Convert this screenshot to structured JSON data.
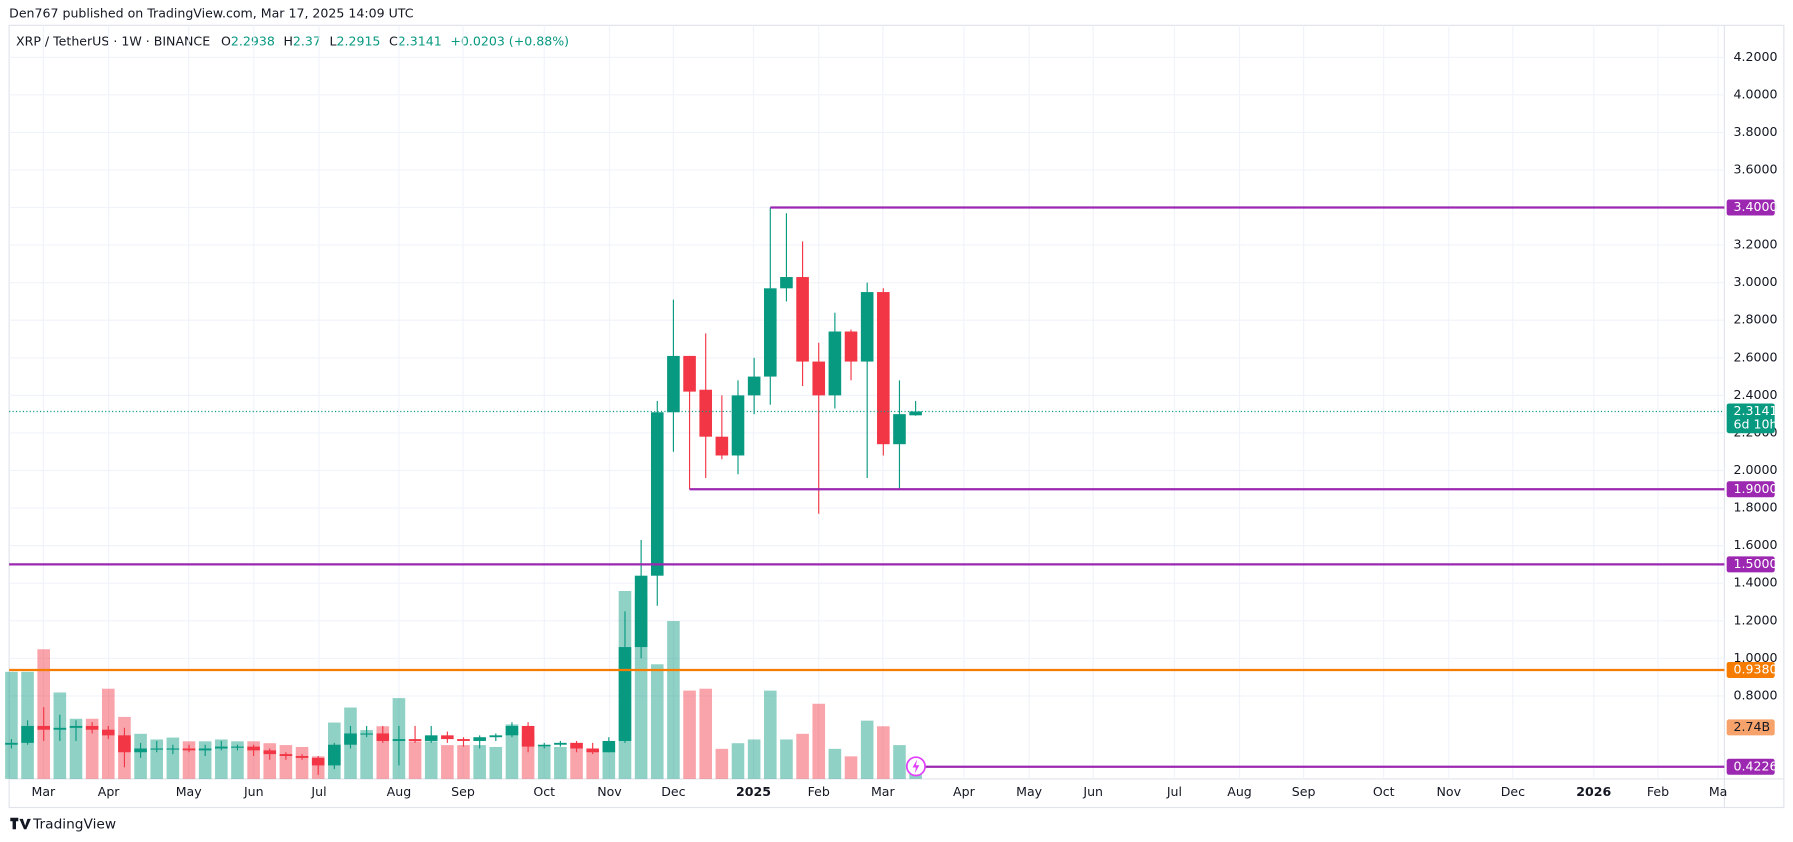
{
  "chart_data": {
    "type": "candlestick",
    "header": "Den767 published on TradingView.com, Mar 17, 2025 14:09 UTC",
    "title": "XRP / TetherUS · 1W · BINANCE",
    "fields": [
      "O",
      "H",
      "L",
      "C"
    ],
    "change": "+0.0203 (+0.88%)",
    "footer": "TradingView",
    "up_color": "#089981",
    "down_color": "#f23645",
    "open": [
      0.54,
      0.55,
      0.64,
      0.62,
      0.63,
      0.64,
      0.62,
      0.59,
      0.5,
      0.52,
      0.52,
      0.52,
      0.51,
      0.52,
      0.53,
      0.53,
      0.51,
      0.49,
      0.48,
      0.47,
      0.43,
      0.54,
      0.6,
      0.6,
      0.56,
      0.57,
      0.56,
      0.59,
      0.57,
      0.56,
      0.58,
      0.59,
      0.64,
      0.53,
      0.54,
      0.55,
      0.52,
      0.5,
      0.56,
      1.06,
      1.44,
      2.31,
      2.61,
      2.43,
      2.18,
      2.08,
      2.4,
      2.5,
      2.97,
      3.03,
      2.58,
      2.4,
      2.74,
      2.58,
      2.95,
      2.14,
      2.2938
    ],
    "high": [
      0.57,
      0.67,
      0.74,
      0.7,
      0.67,
      0.66,
      0.64,
      0.63,
      0.55,
      0.56,
      0.54,
      0.54,
      0.54,
      0.56,
      0.54,
      0.54,
      0.52,
      0.5,
      0.49,
      0.48,
      0.55,
      0.64,
      0.64,
      0.64,
      0.64,
      0.64,
      0.64,
      0.61,
      0.58,
      0.59,
      0.6,
      0.66,
      0.66,
      0.55,
      0.56,
      0.56,
      0.55,
      0.58,
      1.25,
      1.63,
      2.37,
      2.91,
      2.61,
      2.73,
      2.4,
      2.48,
      2.6,
      3.4,
      3.37,
      3.22,
      2.68,
      2.84,
      2.75,
      3.0,
      2.97,
      2.48,
      2.37
    ],
    "low": [
      0.52,
      0.54,
      0.56,
      0.56,
      0.56,
      0.6,
      0.57,
      0.42,
      0.47,
      0.5,
      0.49,
      0.5,
      0.48,
      0.51,
      0.51,
      0.48,
      0.46,
      0.46,
      0.46,
      0.38,
      0.41,
      0.52,
      0.58,
      0.55,
      0.43,
      0.55,
      0.55,
      0.55,
      0.53,
      0.52,
      0.56,
      0.58,
      0.5,
      0.52,
      0.53,
      0.5,
      0.49,
      0.5,
      0.55,
      1.0,
      1.28,
      2.1,
      1.9,
      1.96,
      2.06,
      1.98,
      2.3,
      2.35,
      2.9,
      2.45,
      1.77,
      2.33,
      2.48,
      1.96,
      2.08,
      1.9,
      2.2915
    ],
    "close": [
      0.55,
      0.64,
      0.62,
      0.63,
      0.64,
      0.62,
      0.59,
      0.5,
      0.52,
      0.52,
      0.52,
      0.51,
      0.52,
      0.53,
      0.53,
      0.51,
      0.49,
      0.48,
      0.47,
      0.43,
      0.54,
      0.6,
      0.6,
      0.56,
      0.57,
      0.56,
      0.59,
      0.57,
      0.56,
      0.58,
      0.59,
      0.64,
      0.53,
      0.54,
      0.55,
      0.52,
      0.5,
      0.56,
      1.06,
      1.44,
      2.31,
      2.61,
      2.42,
      2.18,
      2.08,
      2.4,
      2.5,
      2.97,
      3.03,
      2.58,
      2.4,
      2.74,
      2.58,
      2.95,
      2.14,
      2.3,
      2.3141
    ],
    "volume": [
      5.7,
      5.7,
      6.9,
      4.6,
      3.2,
      3.2,
      4.8,
      3.3,
      2.4,
      2.1,
      2.2,
      2.0,
      2.0,
      2.1,
      2.0,
      2.0,
      1.9,
      1.8,
      1.7,
      1.2,
      3.0,
      3.8,
      2.6,
      2.8,
      4.3,
      2.0,
      2.0,
      1.8,
      1.8,
      1.8,
      1.7,
      2.9,
      2.4,
      1.7,
      1.7,
      1.7,
      1.5,
      1.8,
      10.0,
      9.8,
      6.1,
      8.4,
      4.7,
      4.8,
      1.6,
      1.9,
      2.1,
      4.7,
      2.1,
      2.4,
      4.0,
      1.6,
      1.2,
      3.1,
      2.8,
      1.8,
      1.0
    ],
    "volume_lim": [
      0,
      40.1
    ],
    "volume_ma": {
      "value": 2.74,
      "label": "2.74B"
    },
    "xlim": [
      -0.14,
      106.09
    ],
    "xticks": [
      {
        "value": 1.98,
        "label": "Mar"
      },
      {
        "value": 6.02,
        "label": "Apr"
      },
      {
        "value": 10.98,
        "label": "May"
      },
      {
        "value": 15.01,
        "label": "Jun"
      },
      {
        "value": 19.05,
        "label": "Jul"
      },
      {
        "value": 24.0,
        "label": "Aug"
      },
      {
        "value": 27.97,
        "label": "Sep"
      },
      {
        "value": 33.0,
        "label": "Oct"
      },
      {
        "value": 37.04,
        "label": "Nov"
      },
      {
        "value": 41.0,
        "label": "Dec"
      },
      {
        "value": 45.96,
        "label": "2025"
      },
      {
        "value": 50.0,
        "label": "Feb"
      },
      {
        "value": 53.97,
        "label": "Mar"
      },
      {
        "value": 58.99,
        "label": "Apr"
      },
      {
        "value": 63.03,
        "label": "May"
      },
      {
        "value": 67.0,
        "label": "Jun"
      },
      {
        "value": 72.03,
        "label": "Jul"
      },
      {
        "value": 76.06,
        "label": "Aug"
      },
      {
        "value": 80.03,
        "label": "Sep"
      },
      {
        "value": 84.99,
        "label": "Oct"
      },
      {
        "value": 89.02,
        "label": "Nov"
      },
      {
        "value": 92.99,
        "label": "Dec"
      },
      {
        "value": 98.0,
        "label": "2026"
      },
      {
        "value": 101.98,
        "label": "Feb"
      },
      {
        "value": 105.7,
        "label": "Ma"
      }
    ],
    "ylim": [
      0.358,
      4.37
    ],
    "yticks": [
      {
        "value": 4.2,
        "label": "4.2000"
      },
      {
        "value": 4.0,
        "label": "4.0000"
      },
      {
        "value": 3.8,
        "label": "3.8000"
      },
      {
        "value": 3.6,
        "label": "3.6000"
      },
      {
        "value": 3.4,
        "label": "3.4000"
      },
      {
        "value": 3.2,
        "label": "3.2000"
      },
      {
        "value": 3.0,
        "label": "3.0000"
      },
      {
        "value": 2.8,
        "label": "2.8000"
      },
      {
        "value": 2.6,
        "label": "2.6000"
      },
      {
        "value": 2.4,
        "label": "2.4000"
      },
      {
        "value": 2.2,
        "label": "2.2000"
      },
      {
        "value": 2.0,
        "label": "2.0000"
      },
      {
        "value": 1.8,
        "label": "1.8000"
      },
      {
        "value": 1.6,
        "label": "1.6000"
      },
      {
        "value": 1.4,
        "label": "1.4000"
      },
      {
        "value": 1.2,
        "label": "1.2000"
      },
      {
        "value": 1.0,
        "label": "1.0000"
      },
      {
        "value": 0.8,
        "label": "0.8000"
      }
    ],
    "grid": true,
    "levels": [
      {
        "value": 3.4,
        "label": "3.4000",
        "color": "#9c27b0",
        "start": 47
      },
      {
        "value": 1.9,
        "label": "1.9000",
        "color": "#9c27b0",
        "start": 42
      },
      {
        "value": 1.5,
        "label": "1.5000",
        "color": "#9c27b0",
        "start": -0.14
      },
      {
        "value": 0.938,
        "label": "0.9380",
        "color": "#f57c00",
        "start": -0.14
      },
      {
        "value": 0.4226,
        "label": "0.4226",
        "color": "#9c27b0",
        "start": 56.6
      }
    ],
    "last_price": 2.3141,
    "countdown": "6d 10h"
  }
}
